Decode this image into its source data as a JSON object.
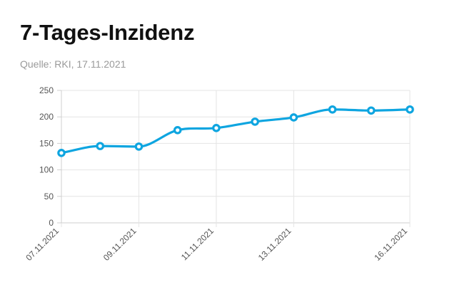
{
  "header": {
    "title": "7-Tages-Inzidenz",
    "source": "Quelle: RKI, 17.11.2021"
  },
  "colors": {
    "line": "#0ea5e0",
    "grid": "#e4e4e4",
    "axis": "#cfcfcf",
    "title": "#111111",
    "source": "#9a9a9a"
  },
  "chart_data": {
    "type": "line",
    "title": "7-Tages-Inzidenz",
    "xlabel": "",
    "ylabel": "",
    "ylim": [
      0,
      250
    ],
    "y_ticks": [
      0,
      50,
      100,
      150,
      200,
      250
    ],
    "y_tick_labels": [
      "0",
      "50",
      "100",
      "150",
      "200",
      "250"
    ],
    "x": [
      "07.11.2021",
      "08.11.2021",
      "09.11.2021",
      "10.11.2021",
      "11.11.2021",
      "12.11.2021",
      "13.11.2021",
      "14.11.2021",
      "15.11.2021",
      "16.11.2021"
    ],
    "x_tick_labels": [
      "07.11.2021",
      "09.11.2021",
      "11.11.2021",
      "13.11.2021",
      "16.11.2021"
    ],
    "series": [
      {
        "values": [
          132,
          145,
          144,
          175,
          179,
          191,
          199,
          214,
          212,
          214
        ]
      }
    ],
    "grid": true,
    "smooth": true,
    "markers": true
  }
}
